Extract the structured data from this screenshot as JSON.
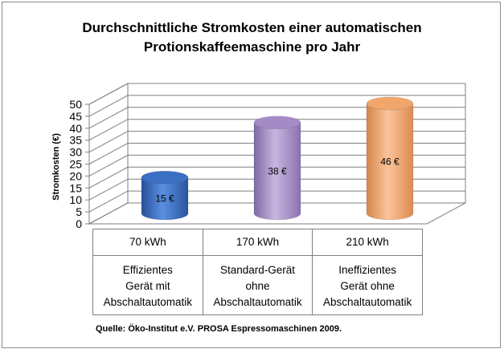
{
  "title": {
    "line1": "Durchschnittliche Stromkosten einer automatischen",
    "line2": "Protionskaffeemaschine pro Jahr"
  },
  "chart_data": {
    "type": "bar",
    "style": "3d-cylinder",
    "title": "Durchschnittliche Stromkosten einer automatischen Protionskaffeemaschine pro Jahr",
    "ylabel": "Stromkosten (€)",
    "ylim": [
      0,
      50
    ],
    "yticks": [
      0,
      5,
      10,
      15,
      20,
      25,
      30,
      35,
      40,
      45,
      50
    ],
    "grid": true,
    "categories": [
      "70 kWh",
      "170 kWh",
      "210 kWh"
    ],
    "values": [
      15,
      38,
      46
    ],
    "data_labels": [
      "15 €",
      "38 €",
      "46 €"
    ],
    "colors": [
      "#3a6fc4",
      "#a48bc6",
      "#f0a66c"
    ]
  },
  "table": {
    "kwh": [
      "70 kWh",
      "170 kWh",
      "210 kWh"
    ],
    "descriptions": [
      [
        "Effizientes",
        "Gerät mit",
        "Abschaltautomatik"
      ],
      [
        "Standard-Gerät",
        "ohne",
        "Abschaltautomatik"
      ],
      [
        "Ineffizientes",
        "Gerät ohne",
        "Abschaltautomatik"
      ]
    ]
  },
  "source": "Quelle: Öko-Institut e.V. PROSA Espressomaschinen  2009."
}
